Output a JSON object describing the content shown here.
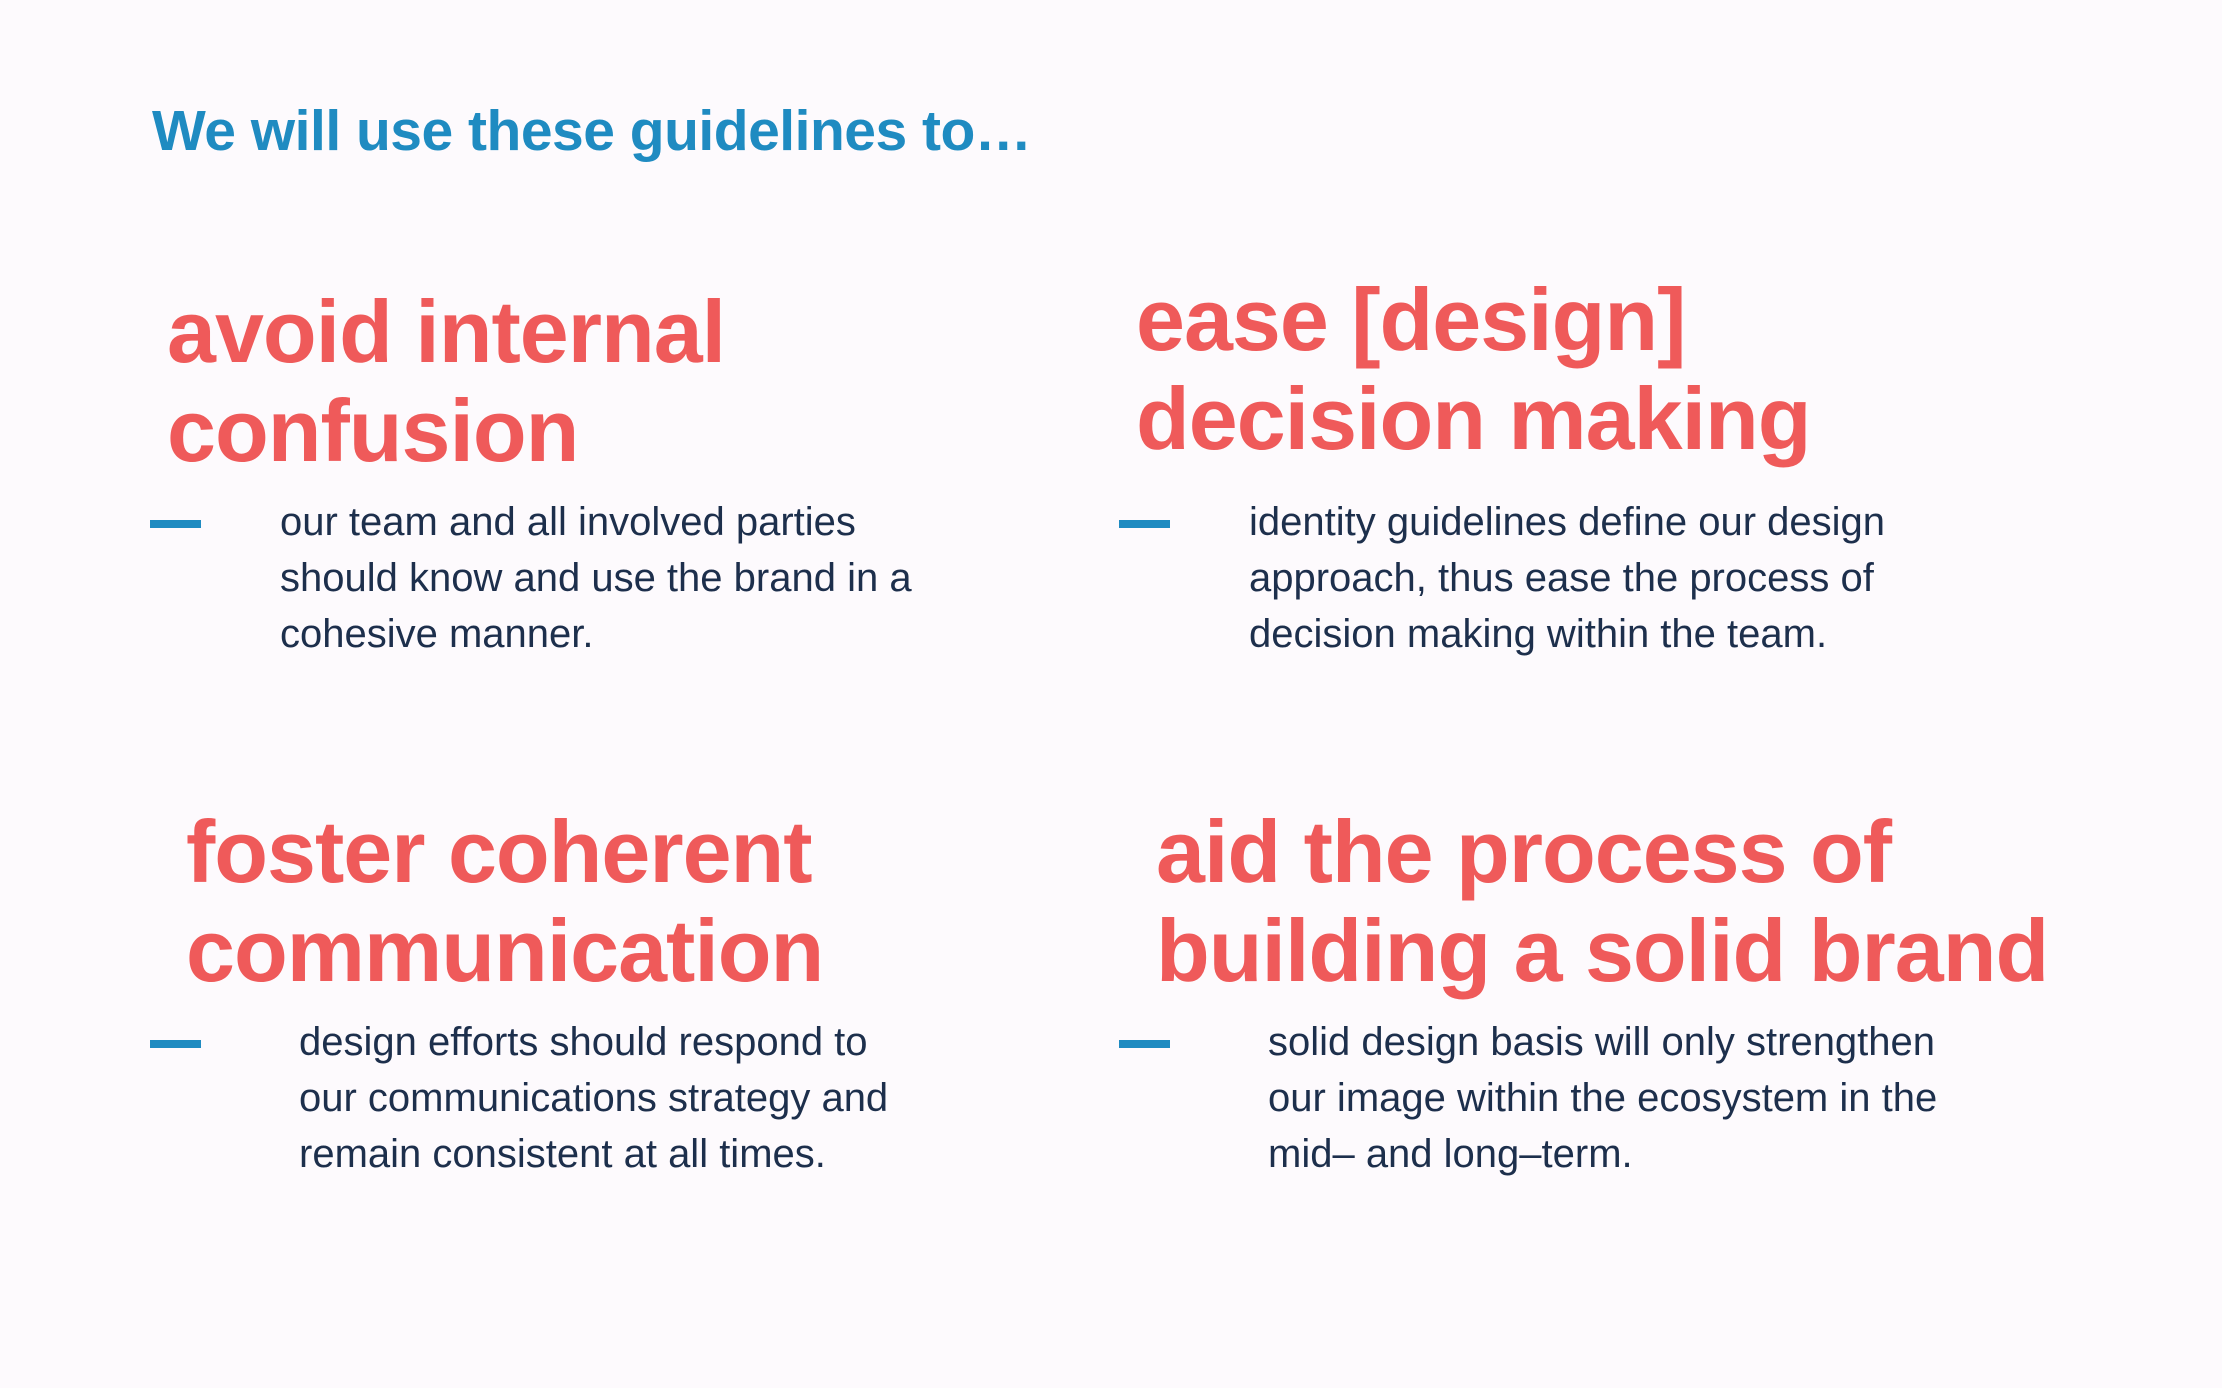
{
  "intro": "We will use these guidelines to…",
  "guidelines": [
    {
      "heading": [
        "avoid internal",
        "confusion"
      ],
      "description": [
        "our team and all involved parties",
        "should know and use the brand in a",
        "cohesive manner."
      ]
    },
    {
      "heading": [
        "ease [design]",
        "decision making"
      ],
      "description": [
        "identity guidelines define our design",
        "approach, thus ease the process of",
        "decision making within the team."
      ]
    },
    {
      "heading": [
        "foster coherent",
        "communication"
      ],
      "description": [
        "design efforts should respond to",
        "our communications strategy and",
        "remain consistent at all times."
      ]
    },
    {
      "heading": [
        "aid the process of",
        "building a solid brand"
      ],
      "description": [
        "solid design basis will only strengthen",
        "our  image within the ecosystem in the",
        "mid– and long–term."
      ]
    }
  ],
  "colors": {
    "background": "#fdfafd",
    "accent_blue": "#1f8bc1",
    "heading_red": "#ef5a5a",
    "body_text": "#1d2f4c"
  }
}
